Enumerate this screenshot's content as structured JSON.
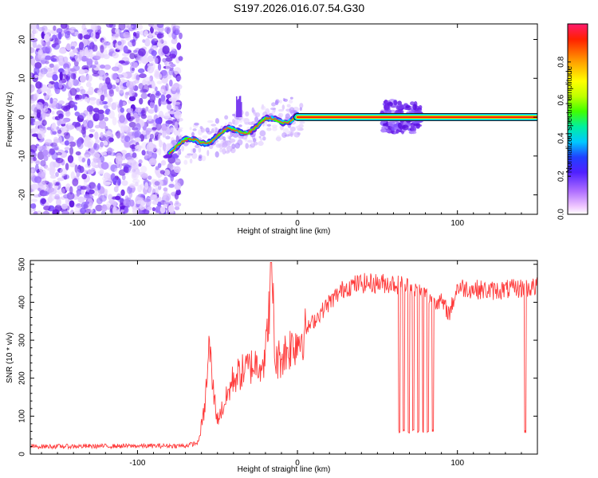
{
  "title": "S197.2026.016.07.54.G30",
  "chart_data": [
    {
      "type": "heatmap",
      "xlabel": "Height of straight line (km)",
      "ylabel": "Frequency (Hz)",
      "xlim": [
        -167,
        150
      ],
      "ylim": [
        -25,
        24
      ],
      "xticks": [
        -100,
        0,
        100
      ],
      "yticks": [
        -20,
        -10,
        0,
        10,
        20
      ],
      "colorbar": {
        "label": "Normalized spectral amplitude",
        "range": [
          0,
          1
        ],
        "ticks": [
          0.0,
          0.2,
          0.4,
          0.6,
          0.8
        ]
      },
      "features": [
        {
          "name": "noise region",
          "x_range": [
            -167,
            -73
          ],
          "freq_range": [
            -25,
            24
          ]
        },
        {
          "name": "drifting trace",
          "x_range": [
            -80,
            0
          ],
          "freq_start": -8,
          "freq_end": 0.5
        },
        {
          "name": "steady line",
          "x_range": [
            0,
            150
          ],
          "freq": 0
        },
        {
          "name": "broadened patch",
          "x_range": [
            53,
            77
          ],
          "freq_range": [
            -4,
            4
          ]
        }
      ]
    },
    {
      "type": "line",
      "xlabel": "Height of straight line (km)",
      "ylabel": "SNR (10 * v/v)",
      "xlim": [
        -167,
        150
      ],
      "ylim": [
        0,
        510
      ],
      "xticks": [
        -100,
        0,
        100
      ],
      "yticks": [
        0,
        100,
        200,
        300,
        400,
        500
      ],
      "color": "#ff3c3c",
      "profile": [
        [
          -167,
          20
        ],
        [
          -70,
          22
        ],
        [
          -62,
          30
        ],
        [
          -58,
          120
        ],
        [
          -55,
          290
        ],
        [
          -53,
          180
        ],
        [
          -50,
          90
        ],
        [
          -45,
          140
        ],
        [
          -40,
          200
        ],
        [
          -30,
          230
        ],
        [
          -20,
          250
        ],
        [
          -16,
          500
        ],
        [
          -14,
          240
        ],
        [
          -5,
          280
        ],
        [
          0,
          300
        ],
        [
          10,
          350
        ],
        [
          20,
          400
        ],
        [
          30,
          440
        ],
        [
          40,
          450
        ],
        [
          60,
          450
        ],
        [
          70,
          440
        ],
        [
          80,
          420
        ],
        [
          90,
          400
        ],
        [
          95,
          370
        ],
        [
          100,
          440
        ],
        [
          120,
          430
        ],
        [
          150,
          440
        ]
      ],
      "dropouts": [
        [
          63,
          64
        ],
        [
          66,
          67
        ],
        [
          69,
          70
        ],
        [
          72,
          73
        ],
        [
          75,
          76
        ],
        [
          78,
          79
        ],
        [
          81,
          82
        ],
        [
          84,
          85
        ],
        [
          142,
          143
        ]
      ],
      "dropout_floor": 55
    }
  ]
}
